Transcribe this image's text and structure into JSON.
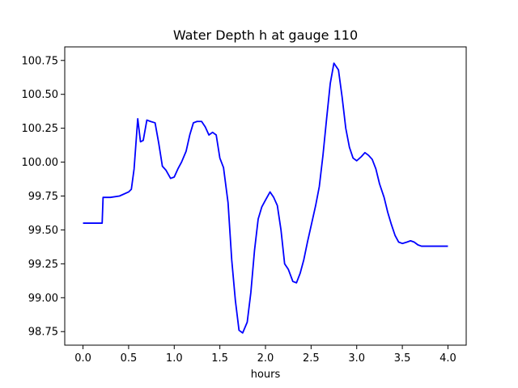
{
  "chart_data": {
    "type": "line",
    "title": "Water Depth h at gauge 110",
    "xlabel": "hours",
    "ylabel": "",
    "xlim": [
      -0.2,
      4.2
    ],
    "ylim": [
      98.65,
      100.85
    ],
    "grid": false,
    "legend": "none",
    "x_ticks": [
      0.0,
      0.5,
      1.0,
      1.5,
      2.0,
      2.5,
      3.0,
      3.5,
      4.0
    ],
    "x_tick_labels": [
      "0.0",
      "0.5",
      "1.0",
      "1.5",
      "2.0",
      "2.5",
      "3.0",
      "3.5",
      "4.0"
    ],
    "y_ticks": [
      98.75,
      99.0,
      99.25,
      99.5,
      99.75,
      100.0,
      100.25,
      100.5,
      100.75
    ],
    "y_tick_labels": [
      "98.75",
      "99.00",
      "99.25",
      "99.50",
      "99.75",
      "100.00",
      "100.25",
      "100.50",
      "100.75"
    ],
    "series": [
      {
        "color": "#0000ff",
        "x": [
          0.0,
          0.21,
          0.22,
          0.3,
          0.4,
          0.5,
          0.53,
          0.56,
          0.6,
          0.63,
          0.66,
          0.7,
          0.74,
          0.79,
          0.83,
          0.87,
          0.91,
          0.96,
          1.0,
          1.04,
          1.08,
          1.13,
          1.17,
          1.21,
          1.25,
          1.3,
          1.34,
          1.38,
          1.42,
          1.46,
          1.5,
          1.54,
          1.59,
          1.63,
          1.67,
          1.71,
          1.75,
          1.8,
          1.84,
          1.88,
          1.92,
          1.96,
          2.0,
          2.05,
          2.09,
          2.13,
          2.17,
          2.21,
          2.25,
          2.3,
          2.34,
          2.38,
          2.42,
          2.46,
          2.5,
          2.55,
          2.59,
          2.63,
          2.67,
          2.71,
          2.75,
          2.8,
          2.84,
          2.88,
          2.92,
          2.96,
          3.0,
          3.05,
          3.09,
          3.13,
          3.17,
          3.21,
          3.25,
          3.3,
          3.34,
          3.38,
          3.42,
          3.46,
          3.5,
          3.55,
          3.59,
          3.63,
          3.67,
          3.71,
          3.75,
          3.8,
          3.84,
          3.88,
          3.92,
          3.96,
          4.0
        ],
        "y": [
          99.55,
          99.55,
          99.74,
          99.74,
          99.75,
          99.78,
          99.8,
          99.95,
          100.32,
          100.15,
          100.16,
          100.31,
          100.3,
          100.29,
          100.14,
          99.97,
          99.94,
          99.88,
          99.89,
          99.95,
          100.0,
          100.08,
          100.2,
          100.29,
          100.3,
          100.3,
          100.26,
          100.2,
          100.22,
          100.2,
          100.03,
          99.96,
          99.7,
          99.28,
          98.98,
          98.76,
          98.74,
          98.82,
          99.04,
          99.35,
          99.58,
          99.67,
          99.72,
          99.78,
          99.74,
          99.68,
          99.5,
          99.25,
          99.21,
          99.12,
          99.11,
          99.18,
          99.28,
          99.41,
          99.53,
          99.68,
          99.82,
          100.05,
          100.32,
          100.58,
          100.73,
          100.68,
          100.48,
          100.25,
          100.11,
          100.03,
          100.01,
          100.04,
          100.07,
          100.05,
          100.02,
          99.95,
          99.84,
          99.74,
          99.63,
          99.54,
          99.46,
          99.41,
          99.4,
          99.41,
          99.42,
          99.41,
          99.39,
          99.38,
          99.38,
          99.38,
          99.38,
          99.38,
          99.38,
          99.38,
          99.38
        ]
      }
    ]
  }
}
